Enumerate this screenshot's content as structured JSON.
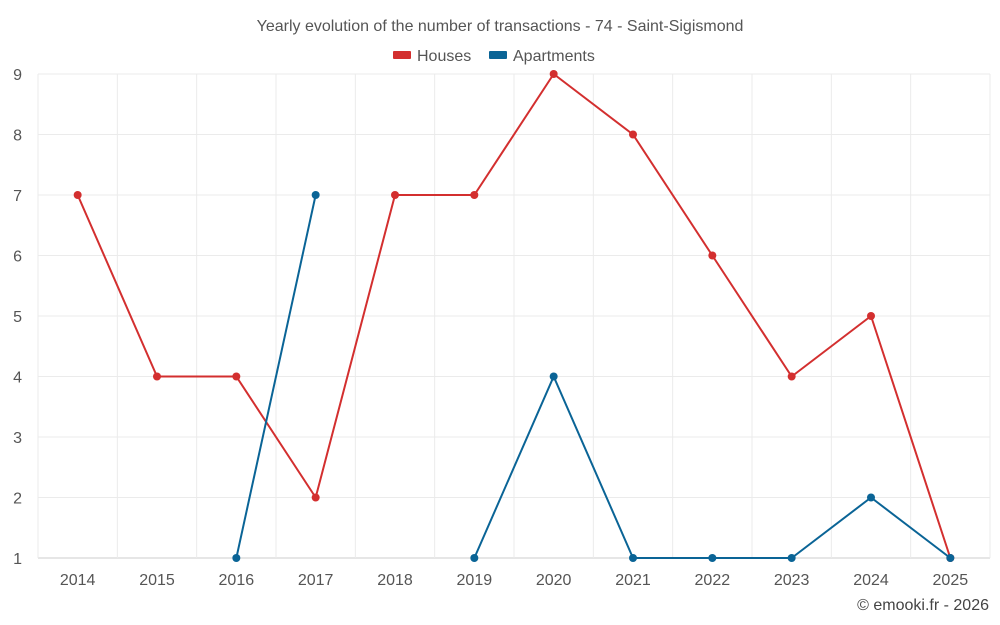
{
  "chart_data": {
    "type": "line",
    "title": "Yearly evolution of the number of transactions - 74 - Saint-Sigismond",
    "x": [
      "2014",
      "2015",
      "2016",
      "2017",
      "2018",
      "2019",
      "2020",
      "2021",
      "2022",
      "2023",
      "2024",
      "2025"
    ],
    "series": [
      {
        "name": "Houses",
        "color": "#d32f2f",
        "values": [
          7,
          4,
          4,
          2,
          7,
          7,
          9,
          8,
          6,
          4,
          5,
          1
        ]
      },
      {
        "name": "Apartments",
        "color": "#0a6496",
        "values": [
          null,
          null,
          1,
          7,
          null,
          1,
          4,
          1,
          1,
          1,
          2,
          1
        ]
      }
    ],
    "ylim": [
      1,
      9
    ],
    "yticks": [
      1,
      2,
      3,
      4,
      5,
      6,
      7,
      8,
      9
    ],
    "grid": true,
    "legend": "top-center",
    "xlabel": "",
    "ylabel": ""
  },
  "credit": "© emooki.fr - 2026"
}
